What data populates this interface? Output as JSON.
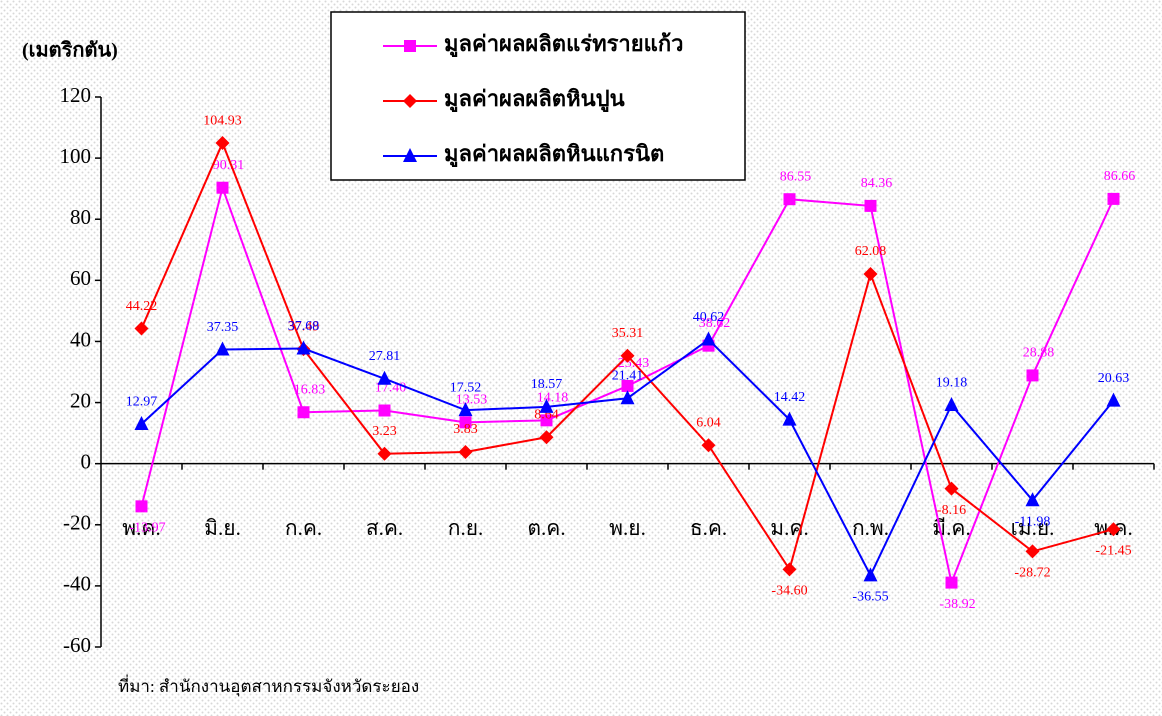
{
  "chart_data": {
    "type": "line",
    "y_axis_label": "(เมตริกตัน)",
    "source": "ที่มา: สำนักงานอุตสาหกรรมจังหวัดระยอง",
    "categories": [
      "พ.ค.",
      "มิ.ย.",
      "ก.ค.",
      "ส.ค.",
      "ก.ย.",
      "ต.ค.",
      "พ.ย.",
      "ธ.ค.",
      "ม.ค.",
      "ก.พ.",
      "มี.ค.",
      "เม.ย.",
      "พ.ค."
    ],
    "series": [
      {
        "name": "มูลค่าผลผลิตแร่ทรายแก้ว",
        "color": "#ff00ff",
        "marker": "square",
        "values": [
          -13.97,
          90.31,
          16.83,
          17.4,
          13.53,
          14.18,
          25.43,
          38.62,
          86.55,
          84.36,
          -38.92,
          28.88,
          86.66
        ],
        "value_labels": [
          "-13.97",
          "90.31",
          "16.83",
          "17.40",
          "13.53",
          "14.18",
          "25.43",
          "38.62",
          "86.55",
          "84.36",
          "-38.92",
          "28.88",
          "86.66"
        ]
      },
      {
        "name": "มูลค่าผลผลิตหินปูน",
        "color": "#ff0000",
        "marker": "diamond",
        "values": [
          44.22,
          104.93,
          37.49,
          3.23,
          3.83,
          8.64,
          35.31,
          6.04,
          -34.6,
          62.08,
          -8.16,
          -28.72,
          -21.45
        ],
        "value_labels": [
          "44.22",
          "104.93",
          "37.49",
          "3.23",
          "3.83",
          "8.64",
          "35.31",
          "6.04",
          "-34.60",
          "62.08",
          "-8.16",
          "-28.72",
          "-21.45"
        ]
      },
      {
        "name": "มูลค่าผลผลิตหินแกรนิต",
        "color": "#0000ff",
        "marker": "triangle",
        "values": [
          12.97,
          37.35,
          37.68,
          27.81,
          17.52,
          18.57,
          21.41,
          40.62,
          14.42,
          -36.55,
          19.18,
          -11.98,
          20.63
        ],
        "value_labels": [
          "12.97",
          "37.35",
          "37.68",
          "27.81",
          "17.52",
          "18.57",
          "21.41",
          "40.62",
          "14.42",
          "-36.55",
          "19.18",
          "-11.98",
          "20.63"
        ]
      }
    ],
    "ylim": [
      -60,
      120
    ],
    "yticks": [
      -60,
      -40,
      -20,
      0,
      20,
      40,
      60,
      80,
      100,
      120
    ]
  }
}
